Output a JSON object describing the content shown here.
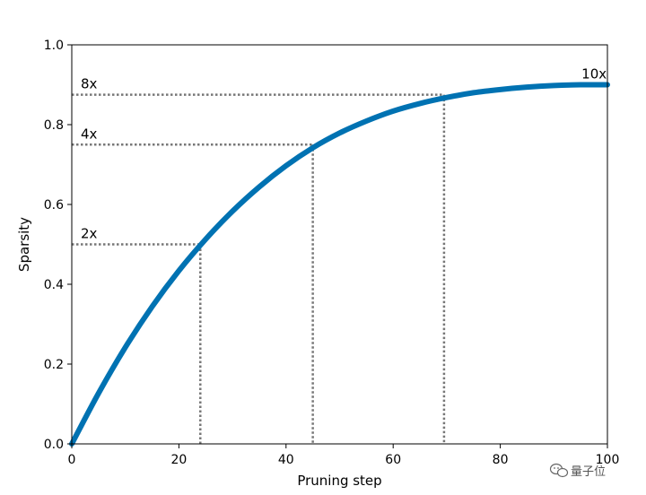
{
  "chart_data": {
    "type": "line",
    "xlabel": "Pruning step",
    "ylabel": "Sparsity",
    "xlim": [
      0,
      100
    ],
    "ylim": [
      0,
      1.0
    ],
    "x_ticks": [
      0,
      20,
      40,
      60,
      80,
      100
    ],
    "y_ticks": [
      0.0,
      0.2,
      0.4,
      0.6,
      0.8,
      1.0
    ],
    "x_tick_labels": [
      "0",
      "20",
      "40",
      "60",
      "80",
      "100"
    ],
    "y_tick_labels": [
      "0.0",
      "0.2",
      "0.4",
      "0.6",
      "0.8",
      "1.0"
    ],
    "grid": false,
    "series": [
      {
        "color": "#0072b2",
        "x": [
          0,
          5,
          10,
          15,
          20,
          25,
          30,
          35,
          40,
          45,
          50,
          55,
          60,
          65,
          70,
          75,
          80,
          85,
          90,
          95,
          100
        ],
        "y": [
          0.0,
          0.127,
          0.242,
          0.344,
          0.434,
          0.513,
          0.583,
          0.644,
          0.697,
          0.742,
          0.779,
          0.809,
          0.834,
          0.853,
          0.868,
          0.88,
          0.888,
          0.894,
          0.898,
          0.9,
          0.9
        ]
      }
    ],
    "reference_lines": [
      {
        "x": 24,
        "y": 0.5,
        "color": "#777777"
      },
      {
        "x": 45,
        "y": 0.75,
        "color": "#777777"
      },
      {
        "x": 69.5,
        "y": 0.875,
        "color": "#777777"
      }
    ],
    "annotations": [
      {
        "text": "2x",
        "x": 1,
        "y": 0.5
      },
      {
        "text": "4x",
        "x": 1,
        "y": 0.75
      },
      {
        "text": "8x",
        "x": 1,
        "y": 0.875
      },
      {
        "text": "10x",
        "x": 94.5,
        "y": 0.9
      }
    ]
  },
  "watermark": {
    "text": "量子位",
    "icon": "wechat-icon"
  }
}
